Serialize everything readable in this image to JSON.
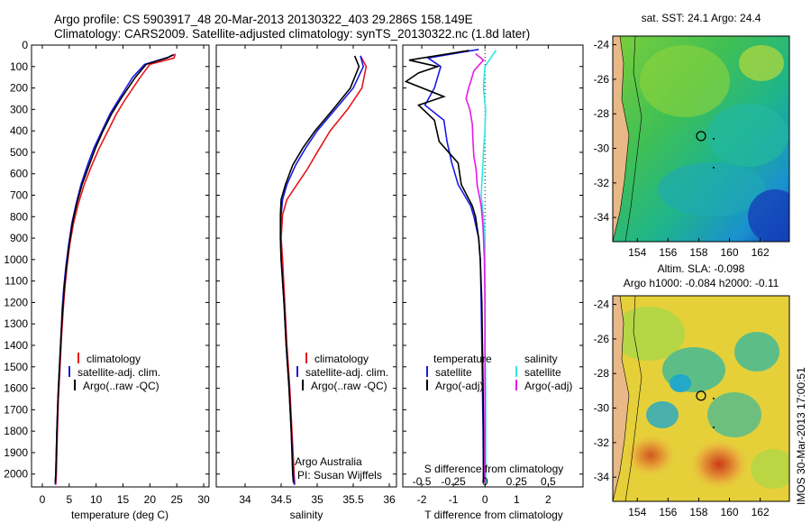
{
  "header": {
    "title_line1": "Argo profile: CS 5903917_48 20-Mar-2013 20130322_403 29.286S 158.149E",
    "title_line2": "Climatology: CARS2009. Satellite-adjusted climatology: synTS_20130322.nc (1.8d later)"
  },
  "colors": {
    "climatology": "#e8141b",
    "satellite": "#1a1ae6",
    "argo": "#000000",
    "satellite_salinity": "#2ee6e6",
    "argo_salinity": "#e61ae6"
  },
  "chart_data": [
    {
      "type": "line",
      "id": "temperature",
      "xlabel": "temperature (deg C)",
      "ylabel": "",
      "xlim": [
        -2,
        31
      ],
      "ylim": [
        2060,
        0
      ],
      "xticks": [
        0,
        5,
        10,
        15,
        20,
        25,
        30
      ],
      "yticks": [
        0,
        100,
        200,
        300,
        400,
        500,
        600,
        700,
        800,
        900,
        1000,
        1100,
        1200,
        1300,
        1400,
        1500,
        1600,
        1700,
        1800,
        1900,
        2000
      ],
      "legend": {
        "placement": "lower-center",
        "entries": [
          "climatology",
          "satellite-adj. clim.",
          "Argo(..raw -QC)"
        ]
      },
      "series": [
        {
          "name": "climatology",
          "color": "#e8141b",
          "points": [
            [
              24.7,
              40
            ],
            [
              24.5,
              60
            ],
            [
              20,
              90
            ],
            [
              18.2,
              150
            ],
            [
              15.5,
              250
            ],
            [
              13.8,
              320
            ],
            [
              12.2,
              400
            ],
            [
              10.6,
              480
            ],
            [
              9.2,
              560
            ],
            [
              7.8,
              650
            ],
            [
              6.7,
              740
            ],
            [
              5.8,
              830
            ],
            [
              5.1,
              930
            ],
            [
              4.6,
              1030
            ],
            [
              4.2,
              1130
            ],
            [
              3.9,
              1230
            ],
            [
              3.6,
              1350
            ],
            [
              3.4,
              1450
            ],
            [
              3.2,
              1550
            ],
            [
              3.0,
              1650
            ],
            [
              2.8,
              1800
            ],
            [
              2.6,
              2000
            ],
            [
              2.5,
              2050
            ]
          ]
        },
        {
          "name": "satellite-adj. clim.",
          "color": "#1a1ae6",
          "points": [
            [
              24.5,
              45
            ],
            [
              23.6,
              55
            ],
            [
              19,
              90
            ],
            [
              16.8,
              150
            ],
            [
              14.3,
              250
            ],
            [
              12.6,
              320
            ],
            [
              11.1,
              400
            ],
            [
              9.6,
              480
            ],
            [
              8.4,
              560
            ],
            [
              7.2,
              650
            ],
            [
              6.3,
              740
            ],
            [
              5.5,
              830
            ],
            [
              4.9,
              930
            ],
            [
              4.4,
              1030
            ],
            [
              4.0,
              1130
            ],
            [
              3.7,
              1230
            ],
            [
              3.5,
              1350
            ],
            [
              3.3,
              1450
            ],
            [
              3.1,
              1550
            ],
            [
              2.9,
              1650
            ],
            [
              2.7,
              1800
            ],
            [
              2.5,
              2000
            ],
            [
              2.4,
              2050
            ]
          ]
        },
        {
          "name": "Argo(..raw -QC)",
          "color": "#000000",
          "points": [
            [
              24.3,
              45
            ],
            [
              23.2,
              60
            ],
            [
              19.3,
              90
            ],
            [
              17.3,
              150
            ],
            [
              14.6,
              250
            ],
            [
              12.9,
              320
            ],
            [
              11.3,
              400
            ],
            [
              9.9,
              480
            ],
            [
              8.7,
              560
            ],
            [
              7.4,
              650
            ],
            [
              6.4,
              740
            ],
            [
              5.6,
              830
            ],
            [
              5.0,
              930
            ],
            [
              4.5,
              1030
            ],
            [
              4.1,
              1130
            ],
            [
              3.8,
              1230
            ],
            [
              3.5,
              1350
            ],
            [
              3.3,
              1450
            ],
            [
              3.1,
              1550
            ],
            [
              2.9,
              1650
            ],
            [
              2.7,
              1800
            ],
            [
              2.5,
              2000
            ],
            [
              2.4,
              2040
            ]
          ]
        }
      ]
    },
    {
      "type": "line",
      "id": "salinity",
      "xlabel": "salinity",
      "xlim": [
        33.6,
        36.1
      ],
      "ylim": [
        2060,
        0
      ],
      "xticks": [
        34,
        34.5,
        35,
        35.5,
        36
      ],
      "legend": {
        "placement": "lower-center",
        "entries": [
          "climatology",
          "satellite-adj. clim.",
          "Argo(..raw -QC)"
        ]
      },
      "note_lines": [
        "Argo Australia",
        "PI: Susan Wijffels"
      ],
      "series": [
        {
          "name": "climatology",
          "color": "#e8141b",
          "points": [
            [
              35.6,
              50
            ],
            [
              35.68,
              100
            ],
            [
              35.62,
              200
            ],
            [
              35.42,
              300
            ],
            [
              35.18,
              400
            ],
            [
              35.0,
              500
            ],
            [
              34.86,
              580
            ],
            [
              34.72,
              650
            ],
            [
              34.58,
              720
            ],
            [
              34.52,
              790
            ],
            [
              34.5,
              900
            ],
            [
              34.52,
              1000
            ],
            [
              34.55,
              1200
            ],
            [
              34.58,
              1400
            ],
            [
              34.62,
              1600
            ],
            [
              34.65,
              1800
            ],
            [
              34.68,
              2000
            ],
            [
              34.69,
              2050
            ]
          ]
        },
        {
          "name": "satellite-adj. clim.",
          "color": "#1a1ae6",
          "points": [
            [
              35.6,
              50
            ],
            [
              35.64,
              100
            ],
            [
              35.5,
              200
            ],
            [
              35.25,
              300
            ],
            [
              35.0,
              400
            ],
            [
              34.84,
              480
            ],
            [
              34.7,
              560
            ],
            [
              34.58,
              650
            ],
            [
              34.52,
              720
            ],
            [
              34.5,
              790
            ],
            [
              34.49,
              900
            ],
            [
              34.5,
              1000
            ],
            [
              34.54,
              1200
            ],
            [
              34.57,
              1400
            ],
            [
              34.61,
              1600
            ],
            [
              34.64,
              1800
            ],
            [
              34.67,
              2000
            ],
            [
              34.68,
              2050
            ]
          ]
        },
        {
          "name": "Argo(..raw -QC)",
          "color": "#000000",
          "points": [
            [
              35.52,
              50
            ],
            [
              35.58,
              100
            ],
            [
              35.46,
              200
            ],
            [
              35.22,
              300
            ],
            [
              34.97,
              400
            ],
            [
              34.8,
              480
            ],
            [
              34.66,
              560
            ],
            [
              34.56,
              650
            ],
            [
              34.5,
              720
            ],
            [
              34.49,
              790
            ],
            [
              34.49,
              900
            ],
            [
              34.5,
              1000
            ],
            [
              34.54,
              1200
            ],
            [
              34.57,
              1400
            ],
            [
              34.61,
              1600
            ],
            [
              34.64,
              1800
            ],
            [
              34.66,
              2000
            ],
            [
              34.67,
              2040
            ]
          ]
        }
      ]
    },
    {
      "type": "line",
      "id": "differences",
      "xlabel": "T difference from climatology",
      "xlabel_top": "S difference from climatology",
      "xlim": [
        -2.6,
        3.1
      ],
      "ylim": [
        2060,
        0
      ],
      "xticks": [
        -2,
        -1,
        0,
        1,
        2
      ],
      "top_ticks": [
        -0.5,
        -0.25,
        0,
        0.25,
        0.5
      ],
      "legend": {
        "placement": "lower-center",
        "groups": [
          {
            "heading": "temperature",
            "entries": [
              "satellite",
              "Argo(-adj)"
            ]
          },
          {
            "heading": "salinity",
            "entries": [
              "satellite",
              "Argo(-adj)"
            ]
          }
        ]
      },
      "series": [
        {
          "name": "temperature satellite",
          "color": "#1a1ae6",
          "points": [
            [
              -0.2,
              20
            ],
            [
              -1.8,
              60
            ],
            [
              -1.4,
              100
            ],
            [
              -1.6,
              200
            ],
            [
              -1.9,
              280
            ],
            [
              -1.3,
              350
            ],
            [
              -1.2,
              450
            ],
            [
              -1.05,
              550
            ],
            [
              -0.85,
              650
            ],
            [
              -0.45,
              750
            ],
            [
              -0.35,
              800
            ],
            [
              -0.2,
              900
            ],
            [
              -0.15,
              1000
            ],
            [
              -0.12,
              1200
            ],
            [
              -0.1,
              1400
            ],
            [
              -0.08,
              1600
            ],
            [
              -0.06,
              1800
            ],
            [
              -0.05,
              2000
            ],
            [
              -0.05,
              2040
            ]
          ]
        },
        {
          "name": "temperature Argo(-adj)",
          "color": "#000000",
          "points": [
            [
              -0.5,
              25
            ],
            [
              -2.4,
              70
            ],
            [
              -1.5,
              100
            ],
            [
              -2.1,
              130
            ],
            [
              -2.5,
              170
            ],
            [
              -1.3,
              240
            ],
            [
              -2.1,
              280
            ],
            [
              -1.6,
              350
            ],
            [
              -1.45,
              450
            ],
            [
              -0.85,
              550
            ],
            [
              -0.75,
              650
            ],
            [
              -0.4,
              750
            ],
            [
              -0.3,
              800
            ],
            [
              -0.2,
              900
            ],
            [
              -0.15,
              1000
            ],
            [
              -0.1,
              1200
            ],
            [
              -0.08,
              1400
            ],
            [
              -0.06,
              1600
            ],
            [
              -0.05,
              1800
            ],
            [
              -0.05,
              2000
            ],
            [
              -0.05,
              2040
            ]
          ]
        },
        {
          "name": "salinity satellite",
          "color": "#2ee6e6",
          "points": [
            [
              0.35,
              25
            ],
            [
              0.18,
              60
            ],
            [
              0.0,
              100
            ],
            [
              -0.05,
              200
            ],
            [
              0.02,
              300
            ],
            [
              0.0,
              400
            ],
            [
              -0.05,
              500
            ],
            [
              -0.08,
              600
            ],
            [
              -0.12,
              700
            ],
            [
              -0.05,
              800
            ],
            [
              0.0,
              900
            ],
            [
              0.0,
              1000
            ],
            [
              0.0,
              1200
            ],
            [
              0.0,
              1400
            ],
            [
              0.02,
              1600
            ],
            [
              0.02,
              1800
            ],
            [
              0.02,
              2000
            ],
            [
              0.02,
              2040
            ]
          ]
        },
        {
          "name": "salinity Argo(-adj)",
          "color": "#e61ae6",
          "points": [
            [
              -0.3,
              40
            ],
            [
              -0.05,
              70
            ],
            [
              -0.35,
              120
            ],
            [
              -0.45,
              170
            ],
            [
              -0.52,
              200
            ],
            [
              -0.6,
              250
            ],
            [
              -0.48,
              300
            ],
            [
              -0.4,
              370
            ],
            [
              -0.38,
              450
            ],
            [
              -0.35,
              520
            ],
            [
              -0.28,
              580
            ],
            [
              -0.25,
              650
            ],
            [
              -0.12,
              750
            ],
            [
              -0.06,
              850
            ],
            [
              -0.02,
              1000
            ],
            [
              0.0,
              1200
            ],
            [
              0.0,
              1400
            ],
            [
              0.0,
              1600
            ],
            [
              0.0,
              1800
            ],
            [
              0.0,
              2000
            ],
            [
              0.0,
              2040
            ]
          ]
        }
      ]
    },
    {
      "type": "heatmap",
      "id": "sst_map",
      "title": "sat. SST: 24.1  Argo: 24.4",
      "xlim": [
        152.4,
        163.9
      ],
      "ylim": [
        -35.4,
        -23.5
      ],
      "xticks": [
        154,
        156,
        158,
        160,
        162
      ],
      "yticks": [
        -24,
        -26,
        -28,
        -30,
        -32,
        -34
      ],
      "argo_position": [
        158.149,
        -29.286
      ]
    },
    {
      "type": "heatmap",
      "id": "sla_map",
      "title_lines": [
        "Altim. SLA: -0.098",
        "Argo h1000: -0.084 h2000: -0.11"
      ],
      "xlim": [
        152.4,
        163.9
      ],
      "ylim": [
        -35.4,
        -23.5
      ],
      "xticks": [
        154,
        156,
        158,
        160,
        162
      ],
      "yticks": [
        -24,
        -26,
        -28,
        -30,
        -32,
        -34
      ],
      "argo_position": [
        158.149,
        -29.286
      ]
    }
  ],
  "footer": {
    "imos_stamp": "IMOS 30-Mar-2013 17:00:51"
  }
}
